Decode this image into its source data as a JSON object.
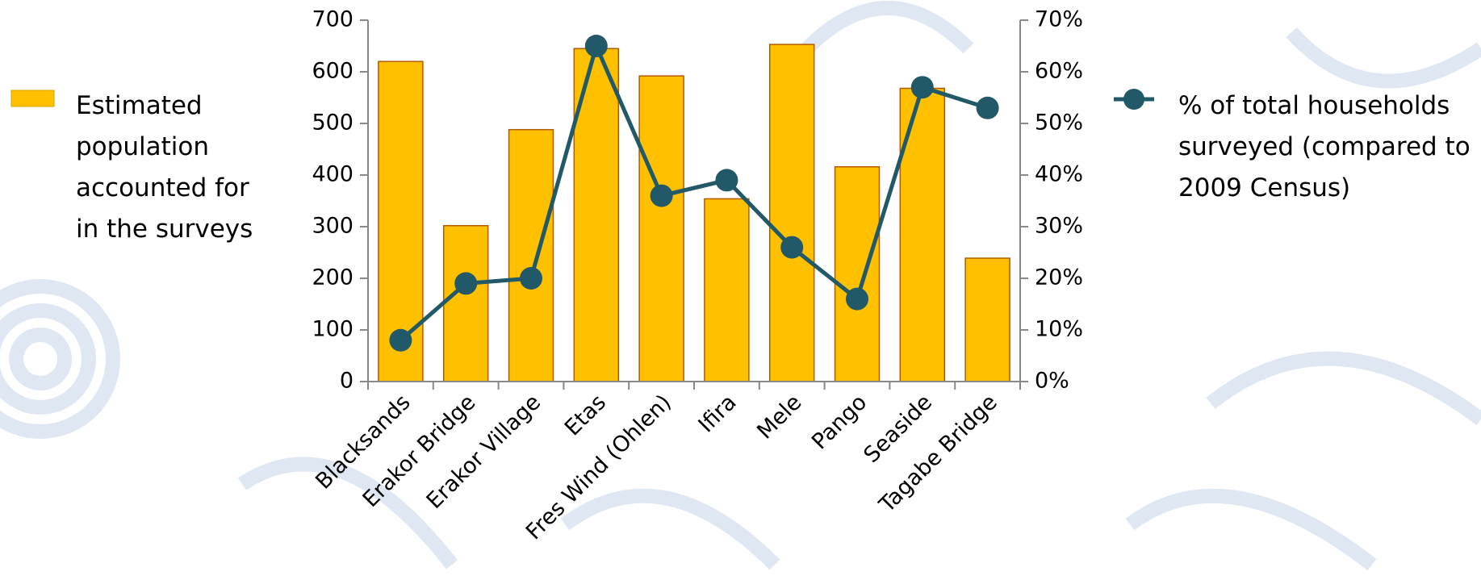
{
  "chart_data": {
    "type": "bar_line",
    "categories": [
      "Blacksands",
      "Erakor Bridge",
      "Erakor Village",
      "Etas",
      "Fres Wind (Ohlen)",
      "Ifira",
      "Mele",
      "Pango",
      "Seaside",
      "Tagabe Bridge"
    ],
    "series": [
      {
        "name": "Estimated population accounted for in the surveys",
        "type": "bar",
        "color": "#ffc000",
        "values": [
          620,
          302,
          488,
          645,
          592,
          354,
          653,
          416,
          568,
          239
        ]
      },
      {
        "name": "% of total households surveyed (compared to 2009 Census)",
        "type": "line",
        "axis": "y2",
        "color": "#215968",
        "values": [
          8,
          19,
          20,
          65,
          36,
          39,
          26,
          16,
          57,
          53
        ]
      }
    ],
    "ylim": [
      0,
      700
    ],
    "yticks": [
      0,
      100,
      200,
      300,
      400,
      500,
      600,
      700
    ],
    "y2lim": [
      0,
      70
    ],
    "y2ticks": [
      {
        "value": 0,
        "label": "0%"
      },
      {
        "value": 10,
        "label": "10%"
      },
      {
        "value": 20,
        "label": "20%"
      },
      {
        "value": 30,
        "label": "30%"
      },
      {
        "value": 40,
        "label": "40%"
      },
      {
        "value": 50,
        "label": "50%"
      },
      {
        "value": 60,
        "label": "60%"
      },
      {
        "value": 70,
        "label": "70%"
      }
    ],
    "grid": false
  }
}
